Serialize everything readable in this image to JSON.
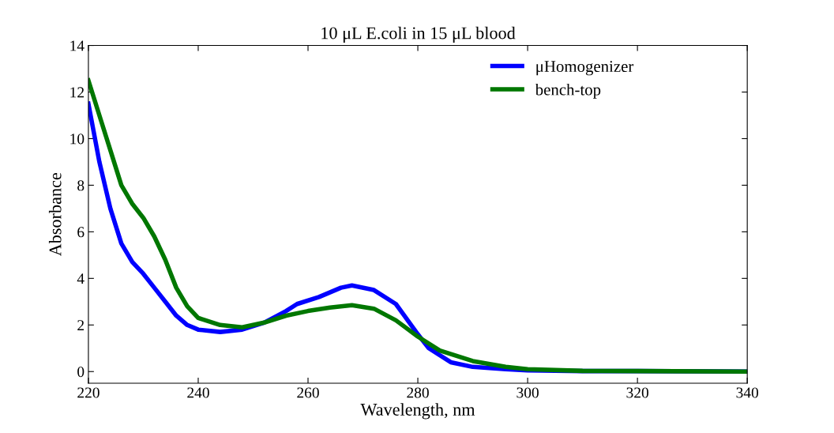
{
  "chart_data": {
    "type": "line",
    "title": "10 μL E.coli in 15 μL blood",
    "xlabel": "Wavelength, nm",
    "ylabel": "Absorbance",
    "xlim": [
      220,
      340
    ],
    "xticks": [
      220,
      240,
      260,
      280,
      300,
      320,
      340
    ],
    "ylim": [
      -0.5,
      14
    ],
    "yticks": [
      0,
      2,
      4,
      6,
      8,
      10,
      12,
      14
    ],
    "legend": "top right",
    "grid": false,
    "series": [
      {
        "name": "μHomogenizer",
        "color": "#0000ff",
        "x": [
          220,
          222,
          224,
          226,
          228,
          230,
          232,
          234,
          236,
          238,
          240,
          244,
          248,
          252,
          256,
          258,
          262,
          266,
          268,
          272,
          276,
          280,
          282,
          286,
          290,
          296,
          300,
          310,
          320,
          340
        ],
        "values": [
          11.5,
          9.0,
          7.0,
          5.5,
          4.7,
          4.2,
          3.6,
          3.0,
          2.4,
          2.0,
          1.8,
          1.7,
          1.8,
          2.1,
          2.6,
          2.9,
          3.2,
          3.6,
          3.7,
          3.5,
          2.9,
          1.6,
          1.0,
          0.4,
          0.2,
          0.1,
          0.05,
          0.02,
          0.02,
          0.0
        ]
      },
      {
        "name": "bench-top",
        "color": "#007700",
        "x": [
          220,
          222,
          224,
          226,
          228,
          230,
          232,
          234,
          236,
          238,
          240,
          244,
          248,
          252,
          256,
          260,
          264,
          268,
          272,
          276,
          280,
          284,
          290,
          296,
          300,
          310,
          320,
          340
        ],
        "values": [
          12.5,
          11.0,
          9.5,
          8.0,
          7.2,
          6.6,
          5.8,
          4.8,
          3.6,
          2.8,
          2.3,
          2.0,
          1.9,
          2.1,
          2.4,
          2.6,
          2.75,
          2.85,
          2.7,
          2.2,
          1.5,
          0.9,
          0.45,
          0.2,
          0.1,
          0.03,
          0.02,
          0.0
        ]
      }
    ]
  }
}
